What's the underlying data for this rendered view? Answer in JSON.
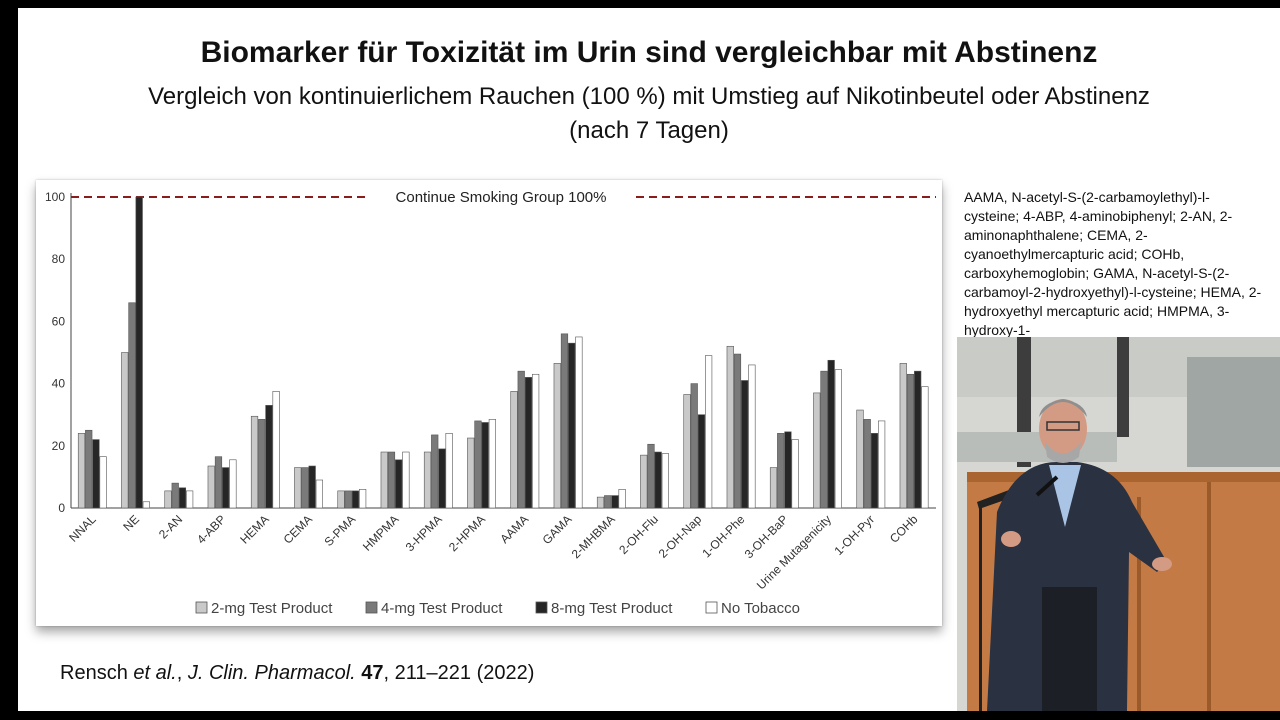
{
  "slide": {
    "title": "Biomarker für Toxizität im Urin sind vergleichbar mit Abstinenz",
    "subtitle_line1": "Vergleich von kontinuierlichem Rauchen (100 %) mit Umstieg auf Nikotinbeutel oder Abstinenz",
    "subtitle_line2": "(nach 7 Tagen)",
    "citation": {
      "authors": "Rensch",
      "etal": "et al.",
      "journal": "J. Clin. Pharmacol.",
      "volume": "47",
      "pages_year": ", 211–221 (2022)"
    },
    "abbreviations": "AAMA, N-acetyl-S-(2-carbamoylethyl)-l-cysteine; 4-ABP, 4-aminobiphenyl; 2-AN, 2-aminonaphthalene; CEMA, 2-cyanoethylmercapturic acid; COHb, carboxyhemoglobin; GAMA, N-acetyl-S-(2-carbamoyl-2-hydroxyethyl)-l-cysteine; HEMA, 2-hydroxyethyl mercapturic acid; HMPMA, 3-hydroxy-1-"
  },
  "chart_data": {
    "type": "bar",
    "reference_line": {
      "label": "Continue Smoking Group 100%",
      "value": 100,
      "style": "dashed",
      "color": "#8b1c1c"
    },
    "categories": [
      "NNAL",
      "NE",
      "2-AN",
      "4-ABP",
      "HEMA",
      "CEMA",
      "S-PMA",
      "HMPMA",
      "3-HPMA",
      "2-HPMA",
      "AAMA",
      "GAMA",
      "2-MHBMA",
      "2-OH-Flu",
      "2-OH-Nap",
      "1-OH-Phe",
      "3-OH-BaP",
      "Urine Mutagenicity",
      "1-OH-Pyr",
      "COHb"
    ],
    "series": [
      {
        "name": "2-mg Test Product",
        "color": "#c9c9c9",
        "values": [
          24,
          50,
          5.5,
          13.5,
          29.5,
          13,
          5.5,
          18,
          18,
          22.5,
          37.5,
          46.5,
          3.5,
          17,
          36.5,
          52,
          13,
          37,
          31.5,
          46.5
        ]
      },
      {
        "name": "4-mg Test Product",
        "color": "#7a7a7a",
        "values": [
          25,
          66,
          8,
          16.5,
          28.5,
          13,
          5.5,
          18,
          23.5,
          28,
          44,
          56,
          4,
          20.5,
          40,
          49.5,
          24,
          44,
          28.5,
          43
        ]
      },
      {
        "name": "8-mg Test Product",
        "color": "#262626",
        "values": [
          22,
          100,
          6.5,
          13,
          33,
          13.5,
          5.5,
          15.5,
          19,
          27.5,
          42,
          53,
          4,
          18,
          30,
          41,
          24.5,
          47.5,
          24,
          44
        ]
      },
      {
        "name": "No Tobacco",
        "color": "#ffffff",
        "values": [
          16.5,
          2,
          5.5,
          15.5,
          37.5,
          9,
          6,
          18,
          24,
          28.5,
          43,
          55,
          6,
          17.5,
          49,
          46,
          22,
          44.5,
          28,
          39
        ]
      }
    ],
    "yticks": [
      0,
      20,
      40,
      60,
      80,
      100
    ],
    "ylim": [
      0,
      100
    ],
    "grid": false,
    "legend_position": "bottom"
  }
}
